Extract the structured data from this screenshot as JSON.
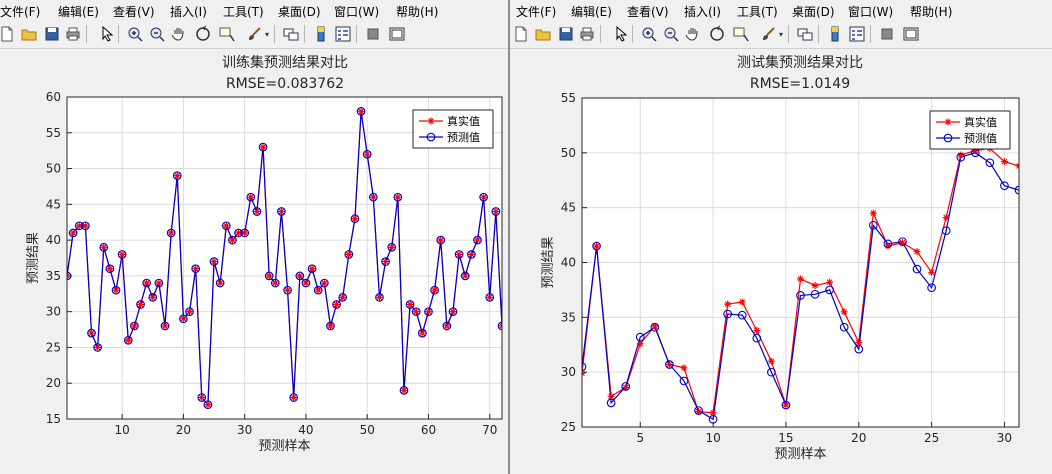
{
  "menu": [
    "文件(F)",
    "编辑(E)",
    "查看(V)",
    "插入(I)",
    "工具(T)",
    "桌面(D)",
    "窗口(W)",
    "帮助(H)"
  ],
  "toolbar_icons": [
    "new-file-icon",
    "open-folder-icon",
    "save-icon",
    "print-icon",
    "pointer-icon",
    "zoom-in-icon",
    "zoom-out-icon",
    "pan-hand-icon",
    "rotate-3d-icon",
    "data-cursor-icon",
    "brush-icon",
    "link-plot-icon",
    "colorbar-icon",
    "legend-icon",
    "hide-plot-tools-icon",
    "show-plot-tools-icon"
  ],
  "colors": {
    "true_series": "#ff0000",
    "pred_series": "#0000cc",
    "true_marker": "#ff0000",
    "pred_marker": "#0000cc"
  },
  "chart_data": [
    {
      "type": "line",
      "title": "训练集预测结果对比",
      "subtitle": "RMSE=0.083762",
      "xlabel": "预测样本",
      "ylabel": "预测结果",
      "xlim": [
        1,
        72
      ],
      "ylim": [
        15,
        60
      ],
      "xticks": [
        10,
        20,
        30,
        40,
        50,
        60,
        70
      ],
      "yticks": [
        15,
        20,
        25,
        30,
        35,
        40,
        45,
        50,
        55,
        60
      ],
      "grid": true,
      "legend_position": "top-right",
      "x": [
        1,
        2,
        3,
        4,
        5,
        6,
        7,
        8,
        9,
        10,
        11,
        12,
        13,
        14,
        15,
        16,
        17,
        18,
        19,
        20,
        21,
        22,
        23,
        24,
        25,
        26,
        27,
        28,
        29,
        30,
        31,
        32,
        33,
        34,
        35,
        36,
        37,
        38,
        39,
        40,
        41,
        42,
        43,
        44,
        45,
        46,
        47,
        48,
        49,
        50,
        51,
        52,
        53,
        54,
        55,
        56,
        57,
        58,
        59,
        60,
        61,
        62,
        63,
        64,
        65,
        66,
        67,
        68,
        69,
        70,
        71,
        72
      ],
      "series": [
        {
          "name": "真实值",
          "marker": "asterisk",
          "values": [
            35,
            41,
            42,
            42,
            27,
            25,
            39,
            36,
            33,
            38,
            26,
            28,
            31,
            34,
            32,
            34,
            28,
            41,
            49,
            29,
            30,
            36,
            18,
            17,
            37,
            34,
            42,
            40,
            41,
            41,
            46,
            44,
            53,
            35,
            34,
            44,
            33,
            18,
            35,
            34,
            36,
            33,
            34,
            28,
            31,
            32,
            38,
            43,
            58,
            52,
            46,
            32,
            37,
            39,
            46,
            19,
            31,
            30,
            27,
            30,
            33,
            40,
            28,
            30,
            38,
            35,
            38,
            40,
            46,
            32,
            44,
            28
          ]
        },
        {
          "name": "预测值",
          "marker": "circle",
          "values": [
            35,
            41,
            42,
            42,
            27,
            25,
            39,
            36,
            33,
            38,
            26,
            28,
            31,
            34,
            32,
            34,
            28,
            41,
            49,
            29,
            30,
            36,
            18,
            17,
            37,
            34,
            42,
            40,
            41,
            41,
            46,
            44,
            53,
            35,
            34,
            44,
            33,
            18,
            35,
            34,
            36,
            33,
            34,
            28,
            31,
            32,
            38,
            43,
            58,
            52,
            46,
            32,
            37,
            39,
            46,
            19,
            31,
            30,
            27,
            30,
            33,
            40,
            28,
            30,
            38,
            35,
            38,
            40,
            46,
            32,
            44,
            28
          ]
        }
      ]
    },
    {
      "type": "line",
      "title": "测试集预测结果对比",
      "subtitle": "RMSE=1.0149",
      "xlabel": "预测样本",
      "ylabel": "预测结果",
      "xlim": [
        1,
        31
      ],
      "ylim": [
        25,
        55
      ],
      "xticks": [
        5,
        10,
        15,
        20,
        25,
        30
      ],
      "yticks": [
        25,
        30,
        35,
        40,
        45,
        50,
        55
      ],
      "grid": true,
      "legend_position": "top-right",
      "x": [
        1,
        2,
        3,
        4,
        5,
        6,
        7,
        8,
        9,
        10,
        11,
        12,
        13,
        14,
        15,
        16,
        17,
        18,
        19,
        20,
        21,
        22,
        23,
        24,
        25,
        26,
        27,
        28,
        29,
        30,
        31
      ],
      "series": [
        {
          "name": "真实值",
          "marker": "asterisk",
          "values": [
            29.9,
            41.5,
            27.8,
            28.6,
            32.6,
            34.2,
            30.7,
            30.4,
            26.4,
            26.3,
            36.2,
            36.4,
            33.8,
            31,
            27,
            38.5,
            37.9,
            38.2,
            35.5,
            32.7,
            44.5,
            41.5,
            41.8,
            41,
            39.1,
            44.1,
            49.8,
            50.2,
            50.4,
            49.2,
            48.8
          ]
        },
        {
          "name": "预测值",
          "marker": "circle",
          "values": [
            30.5,
            41.5,
            27.2,
            28.7,
            33.2,
            34.1,
            30.7,
            29.2,
            26.5,
            25.7,
            35.3,
            35.2,
            33.1,
            30,
            27,
            37,
            37.1,
            37.5,
            34.1,
            32.1,
            43.4,
            41.7,
            41.9,
            39.4,
            37.7,
            42.9,
            49.6,
            50,
            49.1,
            47,
            46.6
          ]
        }
      ]
    }
  ]
}
